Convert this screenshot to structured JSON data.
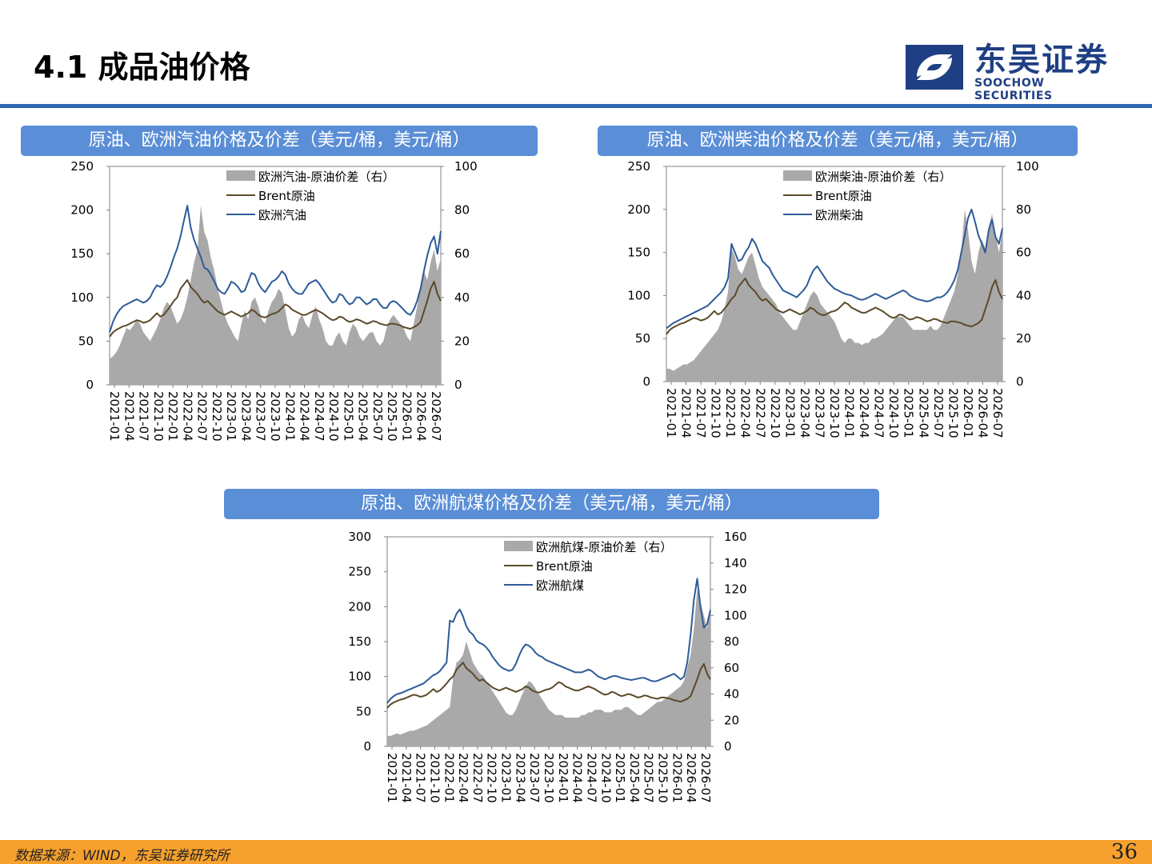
{
  "header": {
    "title": "4.1 成品油价格"
  },
  "logo": {
    "name_cn": "东吴证券",
    "name_en": "SOOCHOW SECURITIES"
  },
  "colors": {
    "accent_blue": "#2c66b3",
    "banner": "#5a8ed6",
    "footer": "#f6a02d",
    "spread_fill": "#a9a9a9",
    "brent_line": "#5b4a2a",
    "product_line": "#2e5b9a"
  },
  "footer": {
    "source": "数据来源：WIND，东吴证券研究所",
    "page_number": "36"
  },
  "charts": [
    {
      "banner_title": "原油、欧洲汽油价格及价差（美元/桶，美元/桶）"
    },
    {
      "banner_title": "原油、欧洲柴油价格及价差（美元/桶，美元/桶）"
    },
    {
      "banner_title": "原油、欧洲航煤价格及价差（美元/桶，美元/桶）"
    }
  ],
  "chart_data": [
    {
      "type": "line",
      "title": "原油、欧洲汽油价格及价差（美元/桶，美元/桶）",
      "x_ticks": [
        "2021-01",
        "2021-04",
        "2021-07",
        "2021-10",
        "2022-01",
        "2022-04",
        "2022-07",
        "2022-10",
        "2023-01",
        "2023-04",
        "2023-07",
        "2023-10",
        "2024-01",
        "2024-04",
        "2024-07",
        "2024-10",
        "2025-01",
        "2025-04",
        "2025-07",
        "2025-10",
        "2026-01",
        "2026-04",
        "2026-07"
      ],
      "ylim_left": [
        0,
        250
      ],
      "yticks_left": [
        0,
        50,
        100,
        150,
        200,
        250
      ],
      "ylim_right": [
        0,
        100
      ],
      "yticks_right": [
        0,
        20,
        40,
        60,
        80,
        100
      ],
      "legend": [
        "欧洲汽油-原油价差（右）",
        "Brent原油",
        "欧洲汽油"
      ],
      "legend_position": "top-center",
      "series": [
        {
          "name": "欧洲汽油-原油价差（右）",
          "axis": "right",
          "kind": "area",
          "values": [
            12,
            13,
            15,
            18,
            22,
            26,
            25,
            27,
            30,
            28,
            24,
            22,
            20,
            23,
            26,
            30,
            35,
            38,
            36,
            32,
            28,
            30,
            34,
            40,
            48,
            56,
            62,
            82,
            70,
            66,
            58,
            52,
            44,
            38,
            32,
            28,
            25,
            22,
            20,
            28,
            34,
            30,
            38,
            40,
            36,
            30,
            28,
            34,
            38,
            40,
            44,
            42,
            34,
            26,
            22,
            24,
            30,
            32,
            28,
            26,
            32,
            36,
            30,
            26,
            20,
            18,
            18,
            22,
            24,
            20,
            18,
            24,
            28,
            26,
            22,
            20,
            22,
            24,
            24,
            20,
            18,
            20,
            26,
            30,
            32,
            30,
            28,
            26,
            22,
            20,
            28,
            36,
            44,
            52,
            48,
            56,
            62,
            52,
            58
          ]
        },
        {
          "name": "Brent原油",
          "axis": "left",
          "kind": "line",
          "values": [
            55,
            60,
            63,
            65,
            67,
            68,
            70,
            72,
            74,
            73,
            71,
            72,
            74,
            78,
            82,
            78,
            80,
            85,
            90,
            96,
            100,
            110,
            115,
            120,
            112,
            108,
            104,
            98,
            94,
            96,
            92,
            88,
            84,
            82,
            80,
            82,
            84,
            82,
            80,
            78,
            80,
            82,
            86,
            84,
            80,
            78,
            77,
            79,
            81,
            82,
            84,
            88,
            92,
            90,
            86,
            84,
            82,
            80,
            80,
            82,
            84,
            86,
            84,
            82,
            79,
            76,
            74,
            75,
            78,
            77,
            74,
            72,
            73,
            75,
            74,
            72,
            70,
            71,
            73,
            72,
            70,
            69,
            68,
            70,
            70,
            69,
            68,
            66,
            65,
            64,
            66,
            68,
            72,
            84,
            96,
            110,
            118,
            104,
            96
          ]
        },
        {
          "name": "欧洲汽油",
          "axis": "left",
          "kind": "line",
          "values": [
            60,
            72,
            80,
            86,
            90,
            92,
            94,
            96,
            98,
            96,
            94,
            96,
            100,
            108,
            114,
            112,
            116,
            124,
            134,
            146,
            156,
            170,
            188,
            205,
            180,
            166,
            156,
            146,
            134,
            132,
            126,
            118,
            110,
            106,
            104,
            110,
            118,
            116,
            112,
            106,
            108,
            118,
            128,
            126,
            116,
            110,
            106,
            112,
            118,
            120,
            124,
            130,
            126,
            116,
            110,
            106,
            104,
            104,
            110,
            116,
            118,
            120,
            116,
            110,
            104,
            98,
            94,
            96,
            104,
            102,
            96,
            92,
            94,
            100,
            100,
            96,
            92,
            94,
            98,
            98,
            92,
            88,
            88,
            94,
            96,
            94,
            90,
            86,
            82,
            80,
            86,
            96,
            110,
            130,
            148,
            162,
            170,
            150,
            176
          ]
        }
      ]
    },
    {
      "type": "line",
      "title": "原油、欧洲柴油价格及价差（美元/桶，美元/桶）",
      "x_ticks": [
        "2021-01",
        "2021-04",
        "2021-07",
        "2021-10",
        "2022-01",
        "2022-04",
        "2022-07",
        "2022-10",
        "2023-01",
        "2023-04",
        "2023-07",
        "2023-10",
        "2024-01",
        "2024-04",
        "2024-07",
        "2024-10",
        "2025-01",
        "2025-04",
        "2025-07",
        "2025-10",
        "2026-01",
        "2026-04",
        "2026-07"
      ],
      "ylim_left": [
        0,
        250
      ],
      "yticks_left": [
        0,
        50,
        100,
        150,
        200,
        250
      ],
      "ylim_right": [
        0,
        100
      ],
      "yticks_right": [
        0,
        20,
        40,
        60,
        80,
        100
      ],
      "legend": [
        "欧洲柴油-原油价差（右）",
        "Brent原油",
        "欧洲柴油"
      ],
      "legend_position": "top-center",
      "series": [
        {
          "name": "欧洲柴油-原油价差（右）",
          "axis": "right",
          "kind": "area",
          "values": [
            6,
            6,
            5,
            6,
            7,
            8,
            8,
            9,
            10,
            12,
            14,
            16,
            18,
            20,
            22,
            24,
            28,
            34,
            42,
            62,
            58,
            52,
            50,
            54,
            58,
            60,
            54,
            48,
            44,
            42,
            40,
            38,
            36,
            32,
            30,
            28,
            26,
            24,
            24,
            28,
            32,
            36,
            40,
            42,
            40,
            36,
            34,
            32,
            30,
            28,
            24,
            20,
            18,
            20,
            20,
            18,
            18,
            17,
            18,
            18,
            20,
            20,
            21,
            22,
            24,
            26,
            28,
            30,
            30,
            30,
            28,
            26,
            24,
            24,
            24,
            24,
            24,
            26,
            24,
            24,
            26,
            30,
            34,
            38,
            42,
            50,
            60,
            80,
            70,
            56,
            50,
            60,
            66,
            62,
            72,
            78,
            68,
            60,
            70
          ]
        },
        {
          "name": "Brent原油",
          "axis": "left",
          "kind": "line",
          "values": [
            55,
            60,
            63,
            65,
            67,
            68,
            70,
            72,
            74,
            73,
            71,
            72,
            74,
            78,
            82,
            78,
            80,
            85,
            90,
            96,
            100,
            110,
            115,
            120,
            112,
            108,
            104,
            98,
            94,
            96,
            92,
            88,
            84,
            82,
            80,
            82,
            84,
            82,
            80,
            78,
            80,
            82,
            86,
            84,
            80,
            78,
            77,
            79,
            81,
            82,
            84,
            88,
            92,
            90,
            86,
            84,
            82,
            80,
            80,
            82,
            84,
            86,
            84,
            82,
            79,
            76,
            74,
            75,
            78,
            77,
            74,
            72,
            73,
            75,
            74,
            72,
            70,
            71,
            73,
            72,
            70,
            69,
            68,
            70,
            70,
            69,
            68,
            66,
            65,
            64,
            66,
            68,
            72,
            84,
            96,
            110,
            118,
            104,
            96
          ]
        },
        {
          "name": "欧洲柴油",
          "axis": "left",
          "kind": "line",
          "values": [
            62,
            65,
            68,
            70,
            72,
            74,
            76,
            78,
            80,
            82,
            84,
            86,
            88,
            92,
            96,
            100,
            104,
            110,
            120,
            160,
            150,
            140,
            142,
            150,
            156,
            166,
            160,
            150,
            140,
            136,
            132,
            124,
            118,
            112,
            106,
            104,
            102,
            100,
            98,
            102,
            106,
            112,
            122,
            130,
            134,
            128,
            122,
            116,
            112,
            108,
            106,
            104,
            102,
            101,
            100,
            98,
            96,
            95,
            96,
            98,
            100,
            102,
            100,
            98,
            96,
            98,
            100,
            102,
            104,
            106,
            104,
            100,
            98,
            96,
            95,
            94,
            93,
            94,
            96,
            98,
            98,
            100,
            104,
            110,
            118,
            130,
            150,
            170,
            190,
            200,
            186,
            170,
            160,
            150,
            176,
            188,
            168,
            160,
            178
          ]
        }
      ]
    },
    {
      "type": "line",
      "title": "原油、欧洲航煤价格及价差（美元/桶，美元/桶）",
      "x_ticks": [
        "2021-01",
        "2021-04",
        "2021-07",
        "2021-10",
        "2022-01",
        "2022-04",
        "2022-07",
        "2022-10",
        "2023-01",
        "2023-04",
        "2023-07",
        "2023-10",
        "2024-01",
        "2024-04",
        "2024-07",
        "2024-10",
        "2025-01",
        "2025-04",
        "2025-07",
        "2025-10",
        "2026-01",
        "2026-04",
        "2026-07"
      ],
      "ylim_left": [
        0,
        300
      ],
      "yticks_left": [
        0,
        50,
        100,
        150,
        200,
        250,
        300
      ],
      "ylim_right": [
        0,
        160
      ],
      "yticks_right": [
        0,
        20,
        40,
        60,
        80,
        100,
        120,
        140,
        160
      ],
      "legend": [
        "欧洲航煤-原油价差（右）",
        "Brent原油",
        "欧洲航煤"
      ],
      "legend_position": "top-center",
      "series": [
        {
          "name": "欧洲航煤-原油价差（右）",
          "axis": "right",
          "kind": "area",
          "values": [
            8,
            8,
            9,
            10,
            9,
            10,
            11,
            12,
            12,
            13,
            14,
            15,
            16,
            18,
            20,
            22,
            24,
            26,
            28,
            30,
            52,
            64,
            66,
            70,
            80,
            72,
            64,
            60,
            56,
            54,
            50,
            46,
            42,
            38,
            34,
            30,
            26,
            24,
            24,
            28,
            34,
            40,
            46,
            50,
            48,
            44,
            40,
            36,
            32,
            28,
            26,
            24,
            24,
            24,
            22,
            22,
            22,
            22,
            22,
            24,
            24,
            26,
            26,
            28,
            28,
            28,
            26,
            26,
            26,
            28,
            28,
            28,
            30,
            30,
            28,
            26,
            24,
            24,
            26,
            28,
            30,
            32,
            34,
            34,
            36,
            38,
            40,
            42,
            44,
            46,
            50,
            60,
            70,
            90,
            120,
            110,
            100,
            90,
            110
          ]
        },
        {
          "name": "Brent原油",
          "axis": "left",
          "kind": "line",
          "values": [
            55,
            60,
            63,
            65,
            67,
            68,
            70,
            72,
            74,
            73,
            71,
            72,
            74,
            78,
            82,
            78,
            80,
            85,
            90,
            96,
            100,
            110,
            115,
            120,
            112,
            108,
            104,
            98,
            94,
            96,
            92,
            88,
            84,
            82,
            80,
            82,
            84,
            82,
            80,
            78,
            80,
            82,
            86,
            84,
            80,
            78,
            77,
            79,
            81,
            82,
            84,
            88,
            92,
            90,
            86,
            84,
            82,
            80,
            80,
            82,
            84,
            86,
            84,
            82,
            79,
            76,
            74,
            75,
            78,
            77,
            74,
            72,
            73,
            75,
            74,
            72,
            70,
            71,
            73,
            72,
            70,
            69,
            68,
            70,
            70,
            69,
            68,
            66,
            65,
            64,
            66,
            68,
            72,
            84,
            96,
            110,
            118,
            104,
            96
          ]
        },
        {
          "name": "欧洲航煤",
          "axis": "left",
          "kind": "line",
          "values": [
            62,
            68,
            72,
            75,
            76,
            78,
            80,
            82,
            84,
            86,
            88,
            90,
            94,
            98,
            102,
            104,
            108,
            114,
            120,
            180,
            178,
            190,
            196,
            186,
            172,
            164,
            160,
            152,
            148,
            146,
            142,
            136,
            128,
            122,
            116,
            112,
            110,
            108,
            110,
            118,
            130,
            140,
            146,
            144,
            140,
            134,
            130,
            128,
            124,
            122,
            120,
            118,
            116,
            114,
            112,
            110,
            108,
            106,
            106,
            106,
            108,
            110,
            108,
            104,
            100,
            98,
            96,
            98,
            100,
            101,
            100,
            98,
            97,
            96,
            95,
            96,
            97,
            98,
            98,
            96,
            94,
            93,
            94,
            96,
            98,
            100,
            102,
            104,
            100,
            96,
            100,
            120,
            160,
            210,
            240,
            200,
            170,
            175,
            195
          ]
        }
      ]
    }
  ]
}
